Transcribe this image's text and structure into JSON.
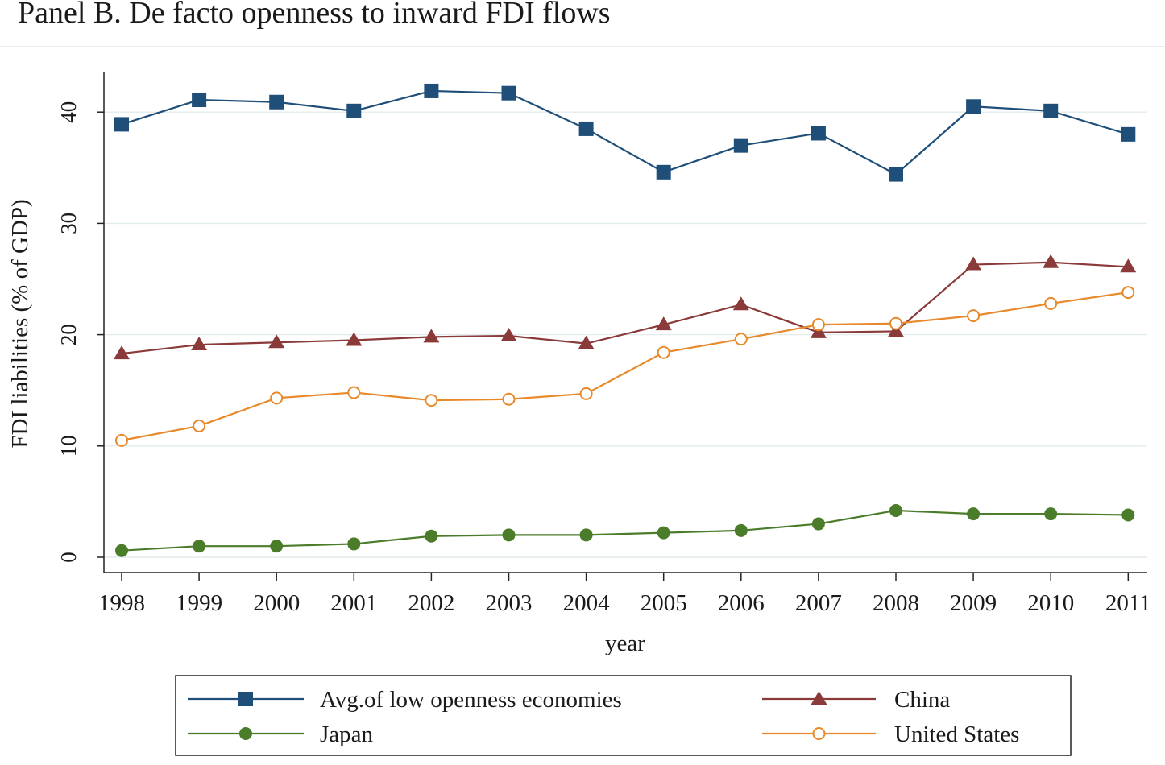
{
  "title": "Panel B. De facto openness to inward FDI flows",
  "chart_data": {
    "type": "line",
    "title": "Panel B. De facto openness to inward FDI flows",
    "xlabel": "year",
    "ylabel": "FDI liabilities (% of GDP)",
    "x": [
      1998,
      1999,
      2000,
      2001,
      2002,
      2003,
      2004,
      2005,
      2006,
      2007,
      2008,
      2009,
      2010,
      2011
    ],
    "ylim": [
      0,
      43
    ],
    "yticks": [
      0,
      10,
      20,
      30,
      40
    ],
    "grid": true,
    "legend_position": "bottom",
    "series": [
      {
        "name": "Avg.of low openness economies",
        "color": "#1f4e79",
        "marker": "filled-square",
        "values": [
          38.9,
          41.1,
          40.9,
          40.1,
          41.9,
          41.7,
          38.5,
          34.6,
          37.0,
          38.1,
          34.4,
          40.5,
          40.1,
          38.0
        ]
      },
      {
        "name": "China",
        "color": "#8b3a3a",
        "marker": "filled-triangle",
        "values": [
          18.3,
          19.1,
          19.3,
          19.5,
          19.8,
          19.9,
          19.2,
          20.9,
          22.7,
          20.2,
          20.3,
          26.3,
          26.5,
          26.1
        ]
      },
      {
        "name": "Japan",
        "color": "#4a7c2a",
        "marker": "filled-circle",
        "values": [
          0.6,
          1.0,
          1.0,
          1.2,
          1.9,
          2.0,
          2.0,
          2.2,
          2.4,
          3.0,
          4.2,
          3.9,
          3.9,
          3.8
        ]
      },
      {
        "name": "United States",
        "color": "#e8892b",
        "marker": "hollow-circle",
        "values": [
          10.5,
          11.8,
          14.3,
          14.8,
          14.1,
          14.2,
          14.7,
          18.4,
          19.6,
          20.9,
          21.0,
          21.7,
          22.8,
          23.8
        ]
      }
    ]
  }
}
